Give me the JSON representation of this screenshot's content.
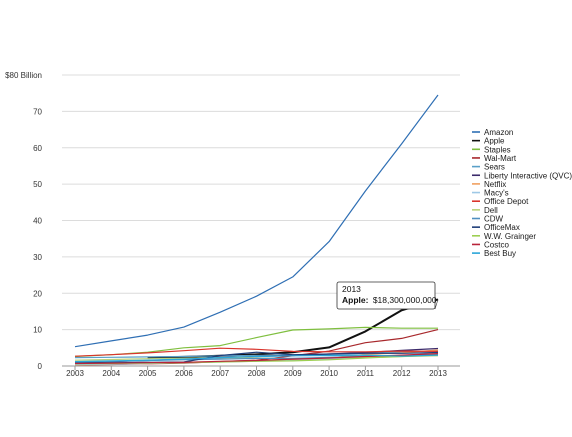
{
  "chart_data": {
    "type": "line",
    "title": "",
    "xlabel": "",
    "ylabel": "",
    "x": [
      "2003",
      "2004",
      "2005",
      "2006",
      "2007",
      "2008",
      "2009",
      "2010",
      "2011",
      "2012",
      "2013"
    ],
    "ylim": [
      0,
      80
    ],
    "y_ticks": [
      {
        "value": 0,
        "label": "0"
      },
      {
        "value": 10,
        "label": "10"
      },
      {
        "value": 20,
        "label": "20"
      },
      {
        "value": 30,
        "label": "30"
      },
      {
        "value": 40,
        "label": "40"
      },
      {
        "value": 50,
        "label": "50"
      },
      {
        "value": 60,
        "label": "60"
      },
      {
        "value": 70,
        "label": "70"
      },
      {
        "value": 80,
        "label": "$80 Billion"
      }
    ],
    "grid": "horizontal",
    "legend_position": "right",
    "series": [
      {
        "name": "Amazon",
        "color": "#2f6fb4",
        "values": [
          5.3,
          6.9,
          8.5,
          10.7,
          14.8,
          19.2,
          24.5,
          34.2,
          48.1,
          61.1,
          74.5
        ]
      },
      {
        "name": "Apple",
        "color": "#111111",
        "values": [
          null,
          null,
          2.3,
          2.5,
          2.8,
          3.2,
          3.8,
          5.1,
          9.5,
          15.3,
          18.3
        ]
      },
      {
        "name": "Staples",
        "color": "#7fbf3f",
        "values": [
          2.6,
          3.1,
          3.8,
          5.0,
          5.6,
          7.8,
          9.9,
          10.2,
          10.6,
          10.4,
          10.4
        ]
      },
      {
        "name": "Wal-Mart",
        "color": "#a8282c",
        "values": [
          0.3,
          0.4,
          0.6,
          0.8,
          1.2,
          1.6,
          2.8,
          4.1,
          6.4,
          7.6,
          10.0
        ]
      },
      {
        "name": "Sears",
        "color": "#5aa0c8",
        "values": [
          2.3,
          2.4,
          2.5,
          2.6,
          2.8,
          2.9,
          3.0,
          3.2,
          3.5,
          3.9,
          4.2
        ]
      },
      {
        "name": "Liberty Interactive (QVC)",
        "color": "#3b2a6b",
        "values": [
          1.0,
          1.2,
          1.5,
          1.9,
          2.3,
          2.6,
          2.9,
          3.3,
          3.7,
          4.3,
          4.8
        ]
      },
      {
        "name": "Netflix",
        "color": "#f0a060",
        "values": [
          0.3,
          0.5,
          0.7,
          1.0,
          1.2,
          1.4,
          1.7,
          2.2,
          3.2,
          3.6,
          4.4
        ]
      },
      {
        "name": "Macy's",
        "color": "#9ec8e6",
        "values": [
          0.4,
          0.5,
          0.7,
          0.9,
          1.1,
          1.3,
          1.5,
          1.9,
          2.3,
          2.8,
          3.3
        ]
      },
      {
        "name": "Office Depot",
        "color": "#d9342c",
        "values": [
          2.7,
          3.1,
          3.6,
          4.2,
          4.9,
          4.6,
          4.0,
          3.9,
          3.9,
          4.1,
          4.0
        ]
      },
      {
        "name": "Dell",
        "color": "#b9d27a",
        "values": [
          1.6,
          1.8,
          2.0,
          2.1,
          2.3,
          2.2,
          2.0,
          2.3,
          2.4,
          2.6,
          2.8
        ]
      },
      {
        "name": "CDW",
        "color": "#4f8fc0",
        "values": [
          1.1,
          1.3,
          1.5,
          1.7,
          1.9,
          2.1,
          2.1,
          2.4,
          2.7,
          2.9,
          3.3
        ]
      },
      {
        "name": "OfficeMax",
        "color": "#1f3e7a",
        "values": [
          0.8,
          0.9,
          1.0,
          1.1,
          2.9,
          3.8,
          3.1,
          3.3,
          3.5,
          3.5,
          3.7
        ]
      },
      {
        "name": "W.W. Grainger",
        "color": "#9dcf52",
        "values": [
          0.6,
          0.7,
          0.8,
          0.9,
          1.1,
          1.3,
          1.4,
          1.7,
          2.2,
          2.6,
          3.0
        ]
      },
      {
        "name": "Costco",
        "color": "#b8243a",
        "values": [
          0.7,
          0.8,
          0.9,
          1.0,
          1.3,
          1.5,
          1.9,
          2.2,
          2.6,
          3.0,
          3.4
        ]
      },
      {
        "name": "Best Buy",
        "color": "#2aa6d8",
        "values": [
          1.2,
          1.4,
          1.6,
          1.9,
          2.3,
          2.6,
          2.8,
          2.9,
          3.0,
          2.7,
          3.0
        ]
      }
    ],
    "annotation": {
      "title": "2013",
      "series_label": "Apple:",
      "value_text": "$18,300,000,000",
      "series": "Apple",
      "x": "2013",
      "y": 18.3
    }
  }
}
